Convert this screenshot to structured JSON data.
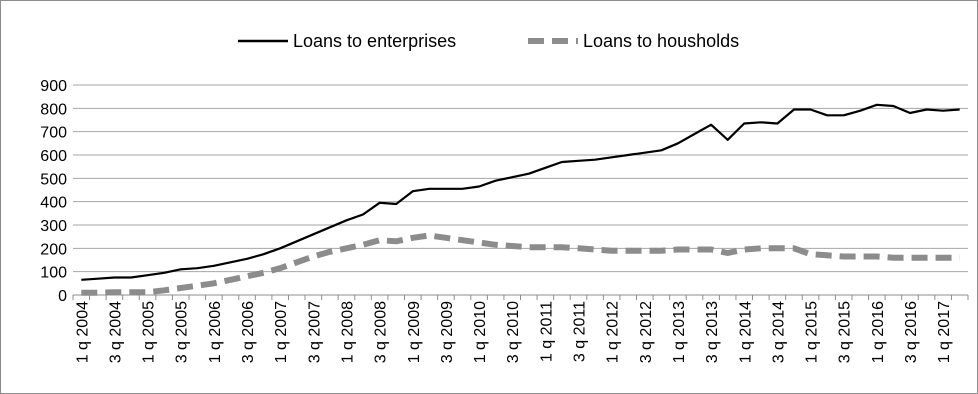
{
  "chart_data": {
    "type": "line",
    "title": "",
    "xlabel": "",
    "ylabel": "",
    "ylim": [
      0,
      900
    ],
    "yticks": [
      0,
      100,
      200,
      300,
      400,
      500,
      600,
      700,
      800,
      900
    ],
    "grid": true,
    "legend_position": "top",
    "x": [
      "1 q 2004",
      "2 q 2004",
      "3 q 2004",
      "4 q 2004",
      "1 q 2005",
      "2 q 2005",
      "3 q 2005",
      "4 q 2005",
      "1 q 2006",
      "2 q 2006",
      "3 q 2006",
      "4 q 2006",
      "1 q 2007",
      "2 q 2007",
      "3 q 2007",
      "4 q 2007",
      "1 q 2008",
      "2 q 2008",
      "3 q 2008",
      "4 q 2008",
      "1 q 2009",
      "2 q 2009",
      "3 q 2009",
      "4 q 2009",
      "1 q 2010",
      "2 q 2010",
      "3 q 2010",
      "4 q 2010",
      "1 q 2011",
      "2 q 2011",
      "3 q 2011",
      "4 q 2011",
      "1 q 2012",
      "2 q 2012",
      "3 q 2012",
      "4 q 2012",
      "1 q 2013",
      "2 q 2013",
      "3 q 2013",
      "4 q 2013",
      "1 q 2014",
      "2 q 2014",
      "3 q 2014",
      "4 q 2014",
      "1 q 2015",
      "2 q 2015",
      "3 q 2015",
      "4 q 2015",
      "1 q 2016",
      "2 q 2016",
      "3 q 2016",
      "4 q 2016",
      "1 q 2017",
      "2 q 2017"
    ],
    "xtick_labels": [
      "1 q 2004",
      "3 q 2004",
      "1 q 2005",
      "3 q 2005",
      "1 q 2006",
      "3 q 2006",
      "1 q 2007",
      "3 q 2007",
      "1 q 2008",
      "3 q 2008",
      "1 q 2009",
      "3 q 2009",
      "1 q 2010",
      "3 q 2010",
      "1 q 2011",
      "3 q 2011",
      "1 q 2012",
      "3 q 2012",
      "1 q 2013",
      "3 q 2013",
      "1 q 2014",
      "3 q 2014",
      "1 q 2015",
      "3 q 2015",
      "1 q 2016",
      "3 q 2016",
      "1 q 2017"
    ],
    "series": [
      {
        "name": "Loans to enterprises",
        "color": "#000000",
        "style": "solid",
        "values": [
          65,
          70,
          75,
          75,
          85,
          95,
          110,
          115,
          125,
          140,
          155,
          175,
          200,
          230,
          260,
          290,
          320,
          345,
          395,
          390,
          445,
          455,
          455,
          455,
          465,
          490,
          505,
          520,
          545,
          570,
          575,
          580,
          590,
          600,
          610,
          620,
          650,
          690,
          730,
          665,
          735,
          740,
          735,
          795,
          795,
          770,
          770,
          790,
          815,
          810,
          780,
          795,
          790,
          795
        ]
      },
      {
        "name": "Loans to housholds",
        "color": "#8c8c8c",
        "style": "dashed",
        "values": [
          10,
          10,
          12,
          12,
          12,
          20,
          30,
          40,
          50,
          65,
          80,
          95,
          115,
          140,
          165,
          185,
          200,
          215,
          235,
          230,
          245,
          255,
          245,
          235,
          225,
          215,
          210,
          205,
          205,
          205,
          200,
          195,
          190,
          190,
          190,
          190,
          195,
          195,
          195,
          180,
          195,
          200,
          200,
          200,
          175,
          170,
          165,
          165,
          165,
          160,
          160,
          160,
          160,
          160
        ]
      }
    ]
  }
}
